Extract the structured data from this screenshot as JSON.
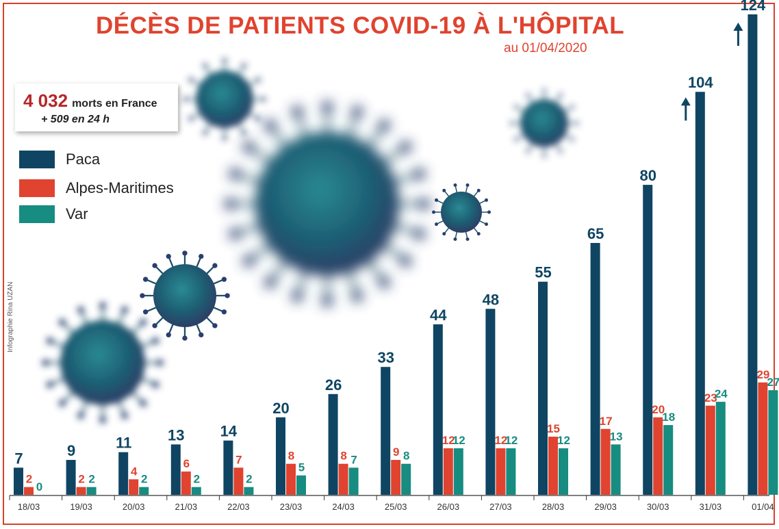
{
  "header": {
    "title": "DÉCÈS DE PATIENTS COVID-19 À L'HÔPITAL",
    "subtitle": "au 01/04/2020"
  },
  "summary": {
    "total": "4 032",
    "total_label": "morts en France",
    "increase": "+ 509  en 24 h"
  },
  "credit": "Infographie Rina UZAN",
  "colors": {
    "paca": "#0f4563",
    "alpes_maritimes": "#e0432f",
    "var": "#178c80",
    "accent": "#e0432f"
  },
  "legend": [
    {
      "label": "Paca",
      "color": "#0f4563"
    },
    {
      "label": "Alpes-Maritimes",
      "color": "#e0432f"
    },
    {
      "label": "Var",
      "color": "#178c80"
    }
  ],
  "chart_data": {
    "type": "bar",
    "title": "DÉCÈS DE PATIENTS COVID-19 À L'HÔPITAL",
    "subtitle": "au 01/04/2020",
    "xlabel": "",
    "ylabel": "",
    "categories": [
      "18/03",
      "19/03",
      "20/03",
      "21/03",
      "22/03",
      "23/03",
      "24/03",
      "25/03",
      "26/03",
      "27/03",
      "28/03",
      "29/03",
      "30/03",
      "31/03",
      "01/04"
    ],
    "series": [
      {
        "name": "Paca",
        "color": "#0f4563",
        "values": [
          7,
          9,
          11,
          13,
          14,
          20,
          26,
          33,
          44,
          48,
          55,
          65,
          80,
          104,
          124
        ]
      },
      {
        "name": "Alpes-Maritimes",
        "color": "#e0432f",
        "values": [
          2,
          2,
          4,
          6,
          7,
          8,
          8,
          9,
          12,
          12,
          15,
          17,
          20,
          23,
          29
        ]
      },
      {
        "name": "Var",
        "color": "#178c80",
        "values": [
          0,
          2,
          2,
          2,
          2,
          5,
          7,
          8,
          12,
          12,
          12,
          13,
          18,
          24,
          27
        ]
      }
    ],
    "ylim": [
      0,
      124
    ],
    "grid": false,
    "legend_position": "top-left",
    "annotations": [
      "arrow-up over 31/03 Paca",
      "arrow-up over 01/04 Paca"
    ]
  }
}
